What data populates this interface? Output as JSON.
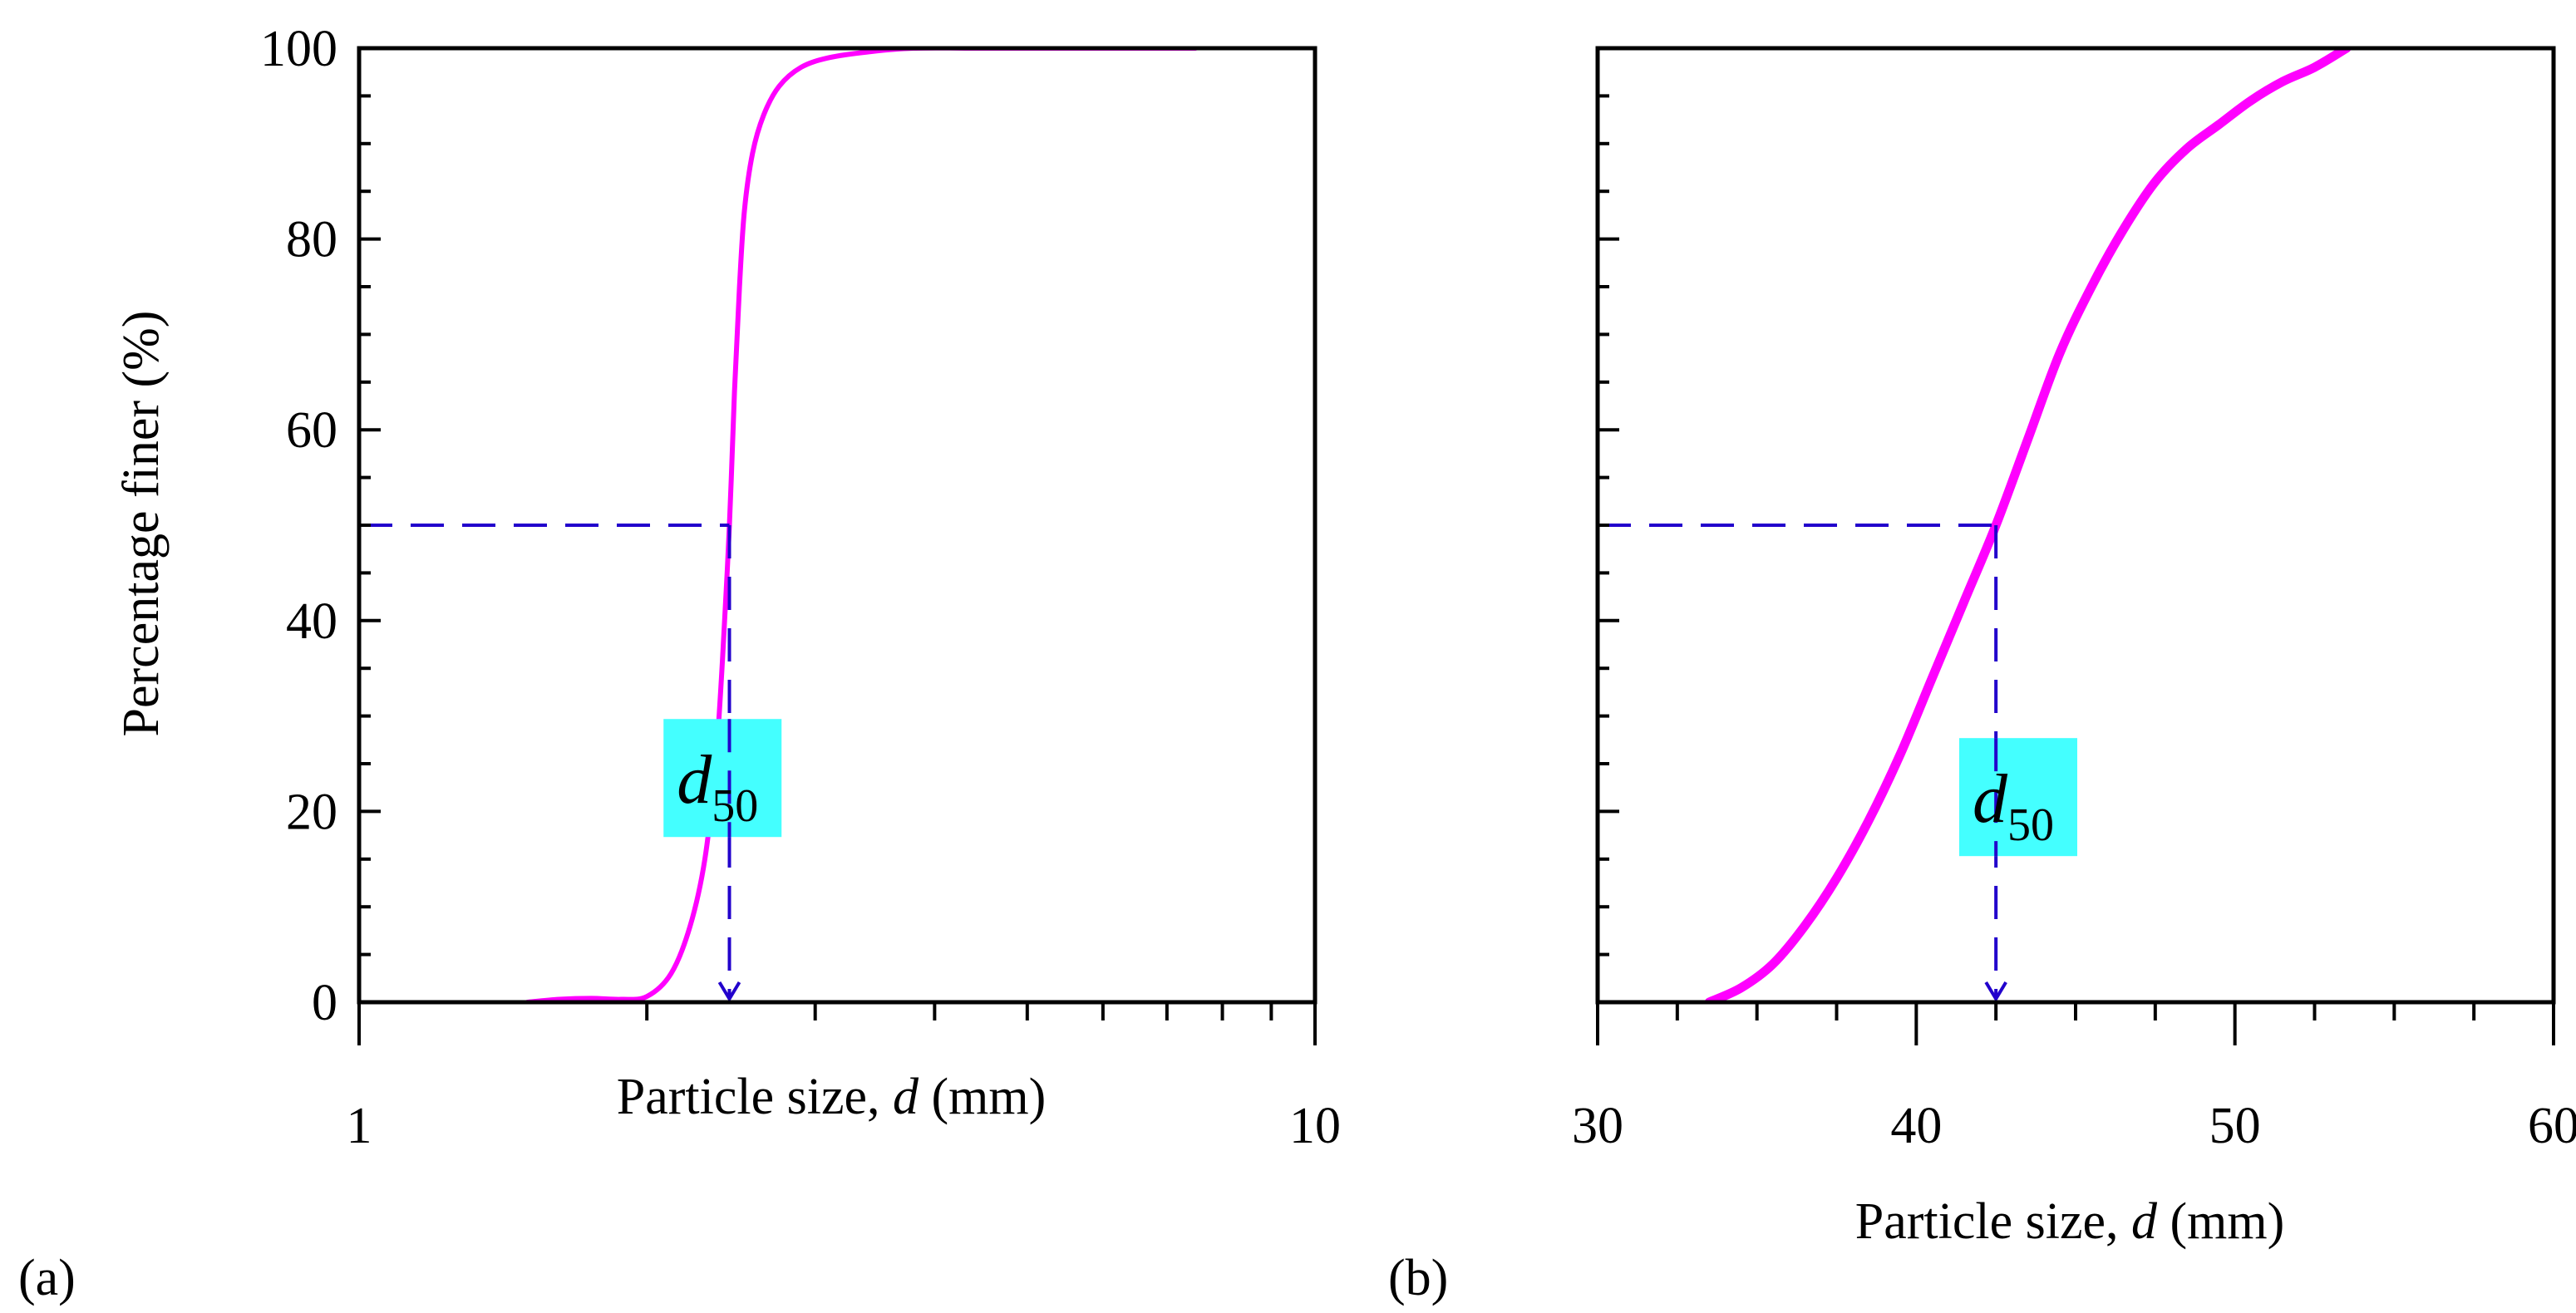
{
  "chart_data": [
    {
      "type": "line",
      "panel_label": "(a)",
      "xscale": "log",
      "xlim": [
        1,
        10
      ],
      "ylim": [
        0,
        100
      ],
      "x_ticks": [
        1,
        10
      ],
      "x_tick_labels": [
        "1",
        "10"
      ],
      "y_ticks": [
        0,
        20,
        40,
        60,
        80,
        100
      ],
      "y_tick_labels": [
        "0",
        "20",
        "40",
        "60",
        "80",
        "100"
      ],
      "xlabel": "Particle size, ",
      "xlabel_var": "d",
      "xlabel_unit": " (mm)",
      "ylabel": "Percentage finer (%)",
      "series": [
        {
          "name": "Percentage finer",
          "color": "#ff00ff",
          "x": [
            1.5,
            1.62,
            1.75,
            1.88,
            2.0,
            2.12,
            2.22,
            2.3,
            2.36,
            2.4,
            2.44,
            2.47,
            2.5,
            2.53,
            2.58,
            2.65,
            2.75,
            2.9,
            3.1,
            3.4,
            3.8,
            4.5,
            5.5,
            7.5
          ],
          "y": [
            0,
            0.3,
            0.4,
            0.3,
            0.6,
            3,
            8,
            15,
            25,
            36,
            50,
            64,
            75,
            83,
            89,
            93,
            96,
            98,
            99,
            99.6,
            100,
            100,
            100,
            100
          ]
        }
      ],
      "d50_marker": {
        "x": 2.44,
        "y": 50,
        "label": "d",
        "subscript": "50",
        "line_color": "#2200cc",
        "box_color": "#44ffff",
        "label_x": 2.4,
        "label_y": 23.5
      }
    },
    {
      "type": "line",
      "panel_label": "(b)",
      "xscale": "linear",
      "xlim": [
        30,
        60
      ],
      "ylim": [
        0,
        100
      ],
      "x_ticks": [
        30,
        40,
        50,
        60
      ],
      "x_tick_labels": [
        "30",
        "40",
        "50",
        "60"
      ],
      "y_ticks": [
        0,
        20,
        40,
        60,
        80,
        100
      ],
      "xlabel": "Particle size, ",
      "xlabel_var": "d",
      "xlabel_unit": " (mm)",
      "ylabel": "",
      "series": [
        {
          "name": "Percentage finer",
          "color": "#ff00ff",
          "x": [
            33.5,
            34.5,
            35.5,
            36.5,
            37.5,
            38.5,
            39.5,
            40.5,
            41.5,
            42.5,
            43.5,
            44.5,
            45.5,
            46.5,
            47.5,
            48.5,
            49.5,
            50.5,
            51.5,
            52.5,
            53.5
          ],
          "y": [
            0,
            1.5,
            4,
            8,
            13,
            19,
            26,
            34,
            42,
            50,
            59,
            68,
            75,
            81,
            86,
            89.5,
            92,
            94.5,
            96.5,
            98,
            100
          ]
        }
      ],
      "d50_marker": {
        "x": 42.5,
        "y": 50,
        "label": "d",
        "subscript": "50",
        "line_color": "#2200cc",
        "box_color": "#44ffff",
        "label_x": 43.2,
        "label_y": 21.5
      }
    }
  ]
}
